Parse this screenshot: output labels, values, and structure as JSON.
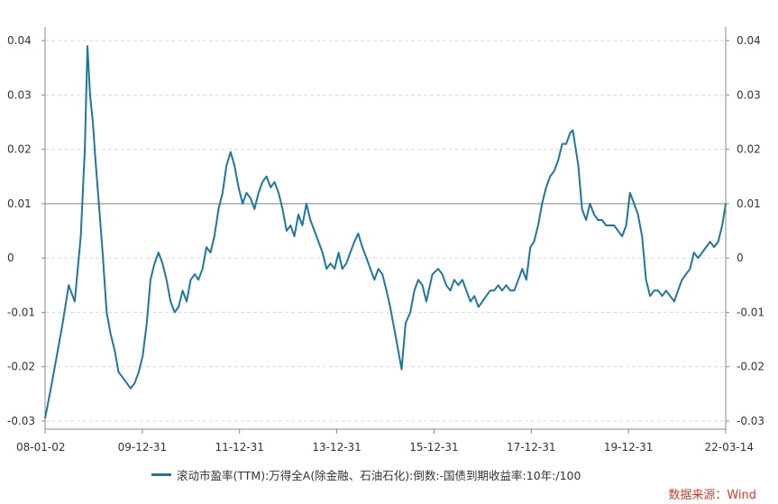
{
  "chart_data": {
    "type": "line",
    "series": [
      {
        "name": "滚动市盈率(TTM):万得全A(除金融、石油石化):倒数:-国债到期收益率:10年:/100",
        "color": "#1f77a0",
        "points": [
          [
            "2008-01-02",
            -0.0295
          ],
          [
            "2008-02-15",
            -0.024
          ],
          [
            "2008-03-31",
            -0.018
          ],
          [
            "2008-05-15",
            -0.012
          ],
          [
            "2008-06-30",
            -0.005
          ],
          [
            "2008-08-15",
            -0.008
          ],
          [
            "2008-09-30",
            0.004
          ],
          [
            "2008-10-31",
            0.02
          ],
          [
            "2008-11-20",
            0.039
          ],
          [
            "2008-12-10",
            0.03
          ],
          [
            "2008-12-31",
            0.025
          ],
          [
            "2009-01-20",
            0.018
          ],
          [
            "2009-02-15",
            0.01
          ],
          [
            "2009-03-15",
            0.001
          ],
          [
            "2009-04-15",
            -0.01
          ],
          [
            "2009-05-15",
            -0.014
          ],
          [
            "2009-06-15",
            -0.017
          ],
          [
            "2009-07-15",
            -0.021
          ],
          [
            "2009-08-15",
            -0.022
          ],
          [
            "2009-09-15",
            -0.023
          ],
          [
            "2009-10-15",
            -0.024
          ],
          [
            "2009-11-15",
            -0.023
          ],
          [
            "2009-12-15",
            -0.021
          ],
          [
            "2010-01-15",
            -0.018
          ],
          [
            "2010-02-15",
            -0.012
          ],
          [
            "2010-03-15",
            -0.004
          ],
          [
            "2010-04-15",
            -0.001
          ],
          [
            "2010-05-15",
            0.001
          ],
          [
            "2010-06-15",
            -0.001
          ],
          [
            "2010-07-15",
            -0.004
          ],
          [
            "2010-08-15",
            -0.008
          ],
          [
            "2010-09-15",
            -0.01
          ],
          [
            "2010-10-15",
            -0.009
          ],
          [
            "2010-11-15",
            -0.006
          ],
          [
            "2010-12-15",
            -0.008
          ],
          [
            "2011-01-15",
            -0.004
          ],
          [
            "2011-02-15",
            -0.003
          ],
          [
            "2011-03-15",
            -0.004
          ],
          [
            "2011-04-15",
            -0.002
          ],
          [
            "2011-05-15",
            0.002
          ],
          [
            "2011-06-15",
            0.001
          ],
          [
            "2011-07-15",
            0.004
          ],
          [
            "2011-08-15",
            0.009
          ],
          [
            "2011-09-15",
            0.012
          ],
          [
            "2011-10-15",
            0.017
          ],
          [
            "2011-11-15",
            0.0195
          ],
          [
            "2011-12-15",
            0.017
          ],
          [
            "2012-01-15",
            0.013
          ],
          [
            "2012-02-15",
            0.01
          ],
          [
            "2012-03-15",
            0.012
          ],
          [
            "2012-04-15",
            0.011
          ],
          [
            "2012-05-15",
            0.009
          ],
          [
            "2012-06-15",
            0.012
          ],
          [
            "2012-07-15",
            0.014
          ],
          [
            "2012-08-15",
            0.015
          ],
          [
            "2012-09-15",
            0.013
          ],
          [
            "2012-10-15",
            0.014
          ],
          [
            "2012-11-15",
            0.012
          ],
          [
            "2012-12-15",
            0.009
          ],
          [
            "2013-01-15",
            0.005
          ],
          [
            "2013-02-15",
            0.006
          ],
          [
            "2013-03-15",
            0.004
          ],
          [
            "2013-04-15",
            0.008
          ],
          [
            "2013-05-15",
            0.006
          ],
          [
            "2013-06-15",
            0.01
          ],
          [
            "2013-07-15",
            0.007
          ],
          [
            "2013-08-15",
            0.005
          ],
          [
            "2013-09-15",
            0.003
          ],
          [
            "2013-10-15",
            0.001
          ],
          [
            "2013-11-15",
            -0.002
          ],
          [
            "2013-12-15",
            -0.001
          ],
          [
            "2014-01-15",
            -0.002
          ],
          [
            "2014-02-15",
            0.001
          ],
          [
            "2014-03-15",
            -0.002
          ],
          [
            "2014-04-15",
            -0.001
          ],
          [
            "2014-05-15",
            0.001
          ],
          [
            "2014-06-15",
            0.003
          ],
          [
            "2014-07-15",
            0.0045
          ],
          [
            "2014-08-15",
            0.002
          ],
          [
            "2014-09-15",
            0.0
          ],
          [
            "2014-10-15",
            -0.002
          ],
          [
            "2014-11-15",
            -0.004
          ],
          [
            "2014-12-15",
            -0.002
          ],
          [
            "2015-01-15",
            -0.003
          ],
          [
            "2015-02-15",
            -0.006
          ],
          [
            "2015-03-15",
            -0.009
          ],
          [
            "2015-04-15",
            -0.013
          ],
          [
            "2015-05-15",
            -0.017
          ],
          [
            "2015-06-10",
            -0.0205
          ],
          [
            "2015-07-10",
            -0.012
          ],
          [
            "2015-08-15",
            -0.01
          ],
          [
            "2015-09-15",
            -0.006
          ],
          [
            "2015-10-15",
            -0.004
          ],
          [
            "2015-11-15",
            -0.005
          ],
          [
            "2015-12-15",
            -0.008
          ],
          [
            "2016-01-30",
            -0.003
          ],
          [
            "2016-03-15",
            -0.002
          ],
          [
            "2016-04-15",
            -0.003
          ],
          [
            "2016-05-15",
            -0.005
          ],
          [
            "2016-06-15",
            -0.006
          ],
          [
            "2016-07-15",
            -0.004
          ],
          [
            "2016-08-15",
            -0.005
          ],
          [
            "2016-09-15",
            -0.004
          ],
          [
            "2016-10-15",
            -0.006
          ],
          [
            "2016-11-15",
            -0.008
          ],
          [
            "2016-12-15",
            -0.007
          ],
          [
            "2017-01-15",
            -0.009
          ],
          [
            "2017-02-15",
            -0.008
          ],
          [
            "2017-03-15",
            -0.007
          ],
          [
            "2017-04-15",
            -0.006
          ],
          [
            "2017-05-15",
            -0.006
          ],
          [
            "2017-06-15",
            -0.005
          ],
          [
            "2017-07-15",
            -0.006
          ],
          [
            "2017-08-15",
            -0.005
          ],
          [
            "2017-09-15",
            -0.006
          ],
          [
            "2017-10-15",
            -0.006
          ],
          [
            "2017-11-15",
            -0.004
          ],
          [
            "2017-12-15",
            -0.002
          ],
          [
            "2018-01-15",
            -0.004
          ],
          [
            "2018-02-15",
            0.002
          ],
          [
            "2018-03-15",
            0.003
          ],
          [
            "2018-04-15",
            0.006
          ],
          [
            "2018-05-15",
            0.01
          ],
          [
            "2018-06-15",
            0.013
          ],
          [
            "2018-07-15",
            0.015
          ],
          [
            "2018-08-15",
            0.016
          ],
          [
            "2018-09-15",
            0.018
          ],
          [
            "2018-10-15",
            0.021
          ],
          [
            "2018-11-15",
            0.021
          ],
          [
            "2018-12-15",
            0.023
          ],
          [
            "2019-01-04",
            0.0235
          ],
          [
            "2019-02-15",
            0.017
          ],
          [
            "2019-03-15",
            0.009
          ],
          [
            "2019-04-15",
            0.007
          ],
          [
            "2019-05-15",
            0.01
          ],
          [
            "2019-06-15",
            0.008
          ],
          [
            "2019-07-15",
            0.007
          ],
          [
            "2019-08-15",
            0.007
          ],
          [
            "2019-09-15",
            0.006
          ],
          [
            "2019-10-15",
            0.006
          ],
          [
            "2019-11-15",
            0.006
          ],
          [
            "2019-12-15",
            0.005
          ],
          [
            "2020-01-15",
            0.004
          ],
          [
            "2020-02-15",
            0.006
          ],
          [
            "2020-03-15",
            0.012
          ],
          [
            "2020-04-15",
            0.01
          ],
          [
            "2020-05-15",
            0.008
          ],
          [
            "2020-06-15",
            0.004
          ],
          [
            "2020-07-15",
            -0.004
          ],
          [
            "2020-08-15",
            -0.007
          ],
          [
            "2020-09-15",
            -0.006
          ],
          [
            "2020-10-15",
            -0.006
          ],
          [
            "2020-11-15",
            -0.007
          ],
          [
            "2020-12-15",
            -0.006
          ],
          [
            "2021-01-15",
            -0.007
          ],
          [
            "2021-02-15",
            -0.008
          ],
          [
            "2021-03-15",
            -0.006
          ],
          [
            "2021-04-15",
            -0.004
          ],
          [
            "2021-05-15",
            -0.003
          ],
          [
            "2021-06-15",
            -0.002
          ],
          [
            "2021-07-15",
            0.001
          ],
          [
            "2021-08-15",
            0.0
          ],
          [
            "2021-09-15",
            0.001
          ],
          [
            "2021-10-15",
            0.002
          ],
          [
            "2021-11-15",
            0.003
          ],
          [
            "2021-12-15",
            0.002
          ],
          [
            "2022-01-15",
            0.003
          ],
          [
            "2022-02-15",
            0.006
          ],
          [
            "2022-03-14",
            0.01
          ]
        ]
      }
    ],
    "x_ticks": [
      "08-01-02",
      "09-12-31",
      "11-12-31",
      "13-12-31",
      "15-12-31",
      "17-12-31",
      "19-12-31",
      "22-03-14"
    ],
    "y_ticks": [
      "0.04",
      "0.03",
      "0.02",
      "0.01",
      "0",
      "-0.01",
      "-0.02",
      "-0.03"
    ],
    "y_tick_values": [
      0.04,
      0.03,
      0.02,
      0.01,
      0,
      -0.01,
      -0.02,
      -0.03
    ],
    "xlim": [
      "2008-01-02",
      "2022-03-14"
    ],
    "ylim": [
      -0.0315,
      0.0425
    ],
    "reference_line": 0.01,
    "grid": true,
    "dual_y_axis": true,
    "legend_position": "bottom",
    "xlabel": "",
    "ylabel": ""
  },
  "legend": {
    "label": "滚动市盈率(TTM):万得全A(除金融、石油石化):倒数:-国债到期收益率:10年:/100"
  },
  "source": "数据来源：Wind"
}
